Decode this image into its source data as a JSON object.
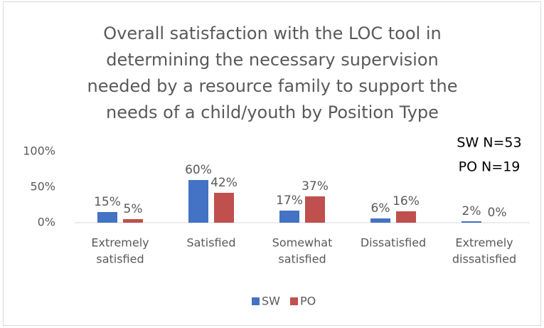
{
  "chart_data": {
    "type": "bar",
    "title": [
      "Overall satisfaction with the LOC tool in",
      "determining the necessary supervision",
      "needed by a resource family to support the",
      "needs of a child/youth by Position Type"
    ],
    "annotations": [
      "SW N=53",
      "PO N=19"
    ],
    "categories": [
      [
        "Extremely",
        "satisfied"
      ],
      [
        "Satisfied"
      ],
      [
        "Somewhat",
        "satisfied"
      ],
      [
        "Dissatisfied"
      ],
      [
        "Extremely",
        "dissatisfied"
      ]
    ],
    "series": [
      {
        "name": "SW",
        "color": "#4472c4",
        "values": [
          15,
          60,
          17,
          6,
          2
        ],
        "value_labels": [
          "15%",
          "60%",
          "17%",
          "6%",
          "2%"
        ]
      },
      {
        "name": "PO",
        "color": "#c0504d",
        "values": [
          5,
          42,
          37,
          16,
          0
        ],
        "value_labels": [
          "5%",
          "42%",
          "37%",
          "16%",
          "0%"
        ]
      }
    ],
    "ylim": [
      0,
      100
    ],
    "yticks": [
      {
        "value": 0,
        "label": "0%"
      },
      {
        "value": 50,
        "label": "50%"
      },
      {
        "value": 100,
        "label": "100%"
      }
    ],
    "grid": false,
    "legend": "bottom"
  }
}
